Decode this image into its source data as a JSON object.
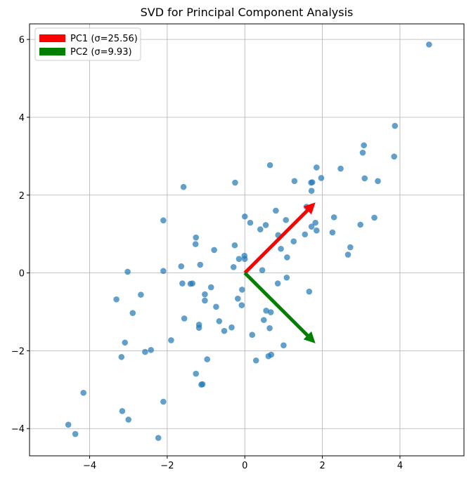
{
  "chart_data": {
    "type": "scatter",
    "title": "SVD for Principal Component Analysis",
    "xlabel": "",
    "ylabel": "",
    "xlim": [
      -5.55,
      5.65
    ],
    "ylim": [
      -4.7,
      6.4
    ],
    "xticks": [
      -4,
      -2,
      0,
      2,
      4
    ],
    "yticks": [
      -4,
      -2,
      0,
      2,
      4,
      6
    ],
    "xtick_labels": [
      "−4",
      "−2",
      "0",
      "2",
      "4"
    ],
    "ytick_labels": [
      "−4",
      "−2",
      "0",
      "2",
      "4",
      "6"
    ],
    "grid": true,
    "legend_position": "top-left",
    "point_color": "#1f77b4",
    "points": [
      [
        4.75,
        5.87
      ],
      [
        3.87,
        3.78
      ],
      [
        3.85,
        2.99
      ],
      [
        3.07,
        3.28
      ],
      [
        3.04,
        3.09
      ],
      [
        3.09,
        2.43
      ],
      [
        3.43,
        2.36
      ],
      [
        2.47,
        2.68
      ],
      [
        3.34,
        1.42
      ],
      [
        2.98,
        1.24
      ],
      [
        2.26,
        1.04
      ],
      [
        2.3,
        1.43
      ],
      [
        2.72,
        0.66
      ],
      [
        2.66,
        0.47
      ],
      [
        1.85,
        2.71
      ],
      [
        1.97,
        2.44
      ],
      [
        1.74,
        2.33
      ],
      [
        1.71,
        2.32
      ],
      [
        1.72,
        2.11
      ],
      [
        1.28,
        2.36
      ],
      [
        1.59,
        1.7
      ],
      [
        1.82,
        1.29
      ],
      [
        1.72,
        1.19
      ],
      [
        1.85,
        1.09
      ],
      [
        1.55,
        0.99
      ],
      [
        1.26,
        0.81
      ],
      [
        0.65,
        2.77
      ],
      [
        0.8,
        1.6
      ],
      [
        1.06,
        1.36
      ],
      [
        0.54,
        1.23
      ],
      [
        0.4,
        1.12
      ],
      [
        0.86,
        0.97
      ],
      [
        0.93,
        0.62
      ],
      [
        1.09,
        0.4
      ],
      [
        0.14,
        1.29
      ],
      [
        0.0,
        1.45
      ],
      [
        -0.25,
        2.32
      ],
      [
        -1.58,
        2.21
      ],
      [
        -2.1,
        1.35
      ],
      [
        -1.26,
        0.91
      ],
      [
        -1.27,
        0.74
      ],
      [
        -0.79,
        0.59
      ],
      [
        -0.26,
        0.71
      ],
      [
        -1.15,
        0.21
      ],
      [
        -1.64,
        0.17
      ],
      [
        -2.1,
        0.05
      ],
      [
        -3.02,
        0.03
      ],
      [
        -0.01,
        0.44
      ],
      [
        -0.15,
        0.36
      ],
      [
        0.0,
        0.36
      ],
      [
        -0.29,
        0.15
      ],
      [
        0.45,
        0.07
      ],
      [
        1.08,
        -0.12
      ],
      [
        0.85,
        -0.27
      ],
      [
        1.66,
        -0.48
      ],
      [
        -1.35,
        -0.27
      ],
      [
        -1.4,
        -0.28
      ],
      [
        -1.61,
        -0.27
      ],
      [
        -1.03,
        -0.55
      ],
      [
        -0.07,
        -0.43
      ],
      [
        -0.87,
        -0.37
      ],
      [
        -1.03,
        -0.71
      ],
      [
        -0.18,
        -0.66
      ],
      [
        -0.08,
        -0.83
      ],
      [
        -0.74,
        -0.87
      ],
      [
        -2.68,
        -0.56
      ],
      [
        -3.31,
        -0.68
      ],
      [
        -2.89,
        -1.03
      ],
      [
        -1.56,
        -1.17
      ],
      [
        0.55,
        -0.97
      ],
      [
        0.67,
        -1.01
      ],
      [
        0.49,
        -1.21
      ],
      [
        0.19,
        -1.59
      ],
      [
        0.64,
        -1.42
      ],
      [
        1.0,
        -1.86
      ],
      [
        0.68,
        -2.1
      ],
      [
        0.61,
        -2.14
      ],
      [
        0.29,
        -2.25
      ],
      [
        -0.66,
        -1.24
      ],
      [
        -0.53,
        -1.49
      ],
      [
        -0.34,
        -1.4
      ],
      [
        -1.18,
        -1.33
      ],
      [
        -1.18,
        -1.41
      ],
      [
        -1.9,
        -1.73
      ],
      [
        -3.09,
        -1.79
      ],
      [
        -2.42,
        -1.98
      ],
      [
        -2.57,
        -2.03
      ],
      [
        -3.18,
        -2.16
      ],
      [
        -0.97,
        -2.22
      ],
      [
        -1.26,
        -2.59
      ],
      [
        -1.09,
        -2.86
      ],
      [
        -1.12,
        -2.87
      ],
      [
        -2.1,
        -3.31
      ],
      [
        -3.16,
        -3.55
      ],
      [
        -3.0,
        -3.77
      ],
      [
        -4.16,
        -3.08
      ],
      [
        -4.55,
        -3.9
      ],
      [
        -4.37,
        -4.14
      ],
      [
        -2.23,
        -4.24
      ]
    ],
    "arrows": [
      {
        "name": "PC1 (σ=25.56)",
        "color": "#ff0000",
        "from": [
          0,
          0
        ],
        "to": [
          1.82,
          1.81
        ]
      },
      {
        "name": "PC2 (σ=9.93)",
        "color": "#008000",
        "from": [
          0,
          0
        ],
        "to": [
          1.82,
          -1.81
        ]
      }
    ],
    "legend": [
      {
        "label": "PC1 (σ=25.56)",
        "color": "#ff0000"
      },
      {
        "label": "PC2 (σ=9.93)",
        "color": "#008000"
      }
    ]
  }
}
